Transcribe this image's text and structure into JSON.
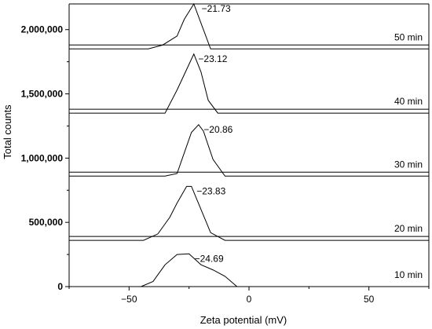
{
  "chart_data": {
    "type": "line",
    "xlabel": "Zeta potential (mV)",
    "ylabel": "Total counts",
    "xlim": [
      -75,
      75
    ],
    "ylim": [
      0,
      2200000
    ],
    "x_ticks": [
      -50,
      0,
      50
    ],
    "x_tick_labels": [
      "−50",
      "0",
      "50"
    ],
    "y_ticks": [
      0,
      500000,
      1000000,
      1500000,
      2000000
    ],
    "y_tick_labels": [
      "0",
      "500,000",
      "1,000,000",
      "1,500,000",
      "2,000,000"
    ],
    "grid": false,
    "series": [
      {
        "name": "10 min",
        "peak_label": "−24.69",
        "peak_x": -24.69,
        "baseline": 0,
        "x": [
          -75,
          -45,
          -40,
          -35,
          -30,
          -25,
          -20,
          -15,
          -10,
          -5,
          75
        ],
        "y": [
          0,
          0,
          40000,
          170000,
          250000,
          255000,
          170000,
          130000,
          80000,
          0,
          0
        ]
      },
      {
        "name": "20 min",
        "peak_label": "−23.83",
        "peak_x": -23.83,
        "baseline": 360000,
        "x": [
          -75,
          -44,
          -38,
          -33,
          -30,
          -26,
          -24,
          -20,
          -16,
          -10,
          75
        ],
        "y": [
          0,
          0,
          50000,
          180000,
          290000,
          420000,
          420000,
          240000,
          60000,
          0,
          0
        ]
      },
      {
        "name": "30 min",
        "peak_label": "−20.86",
        "peak_x": -20.86,
        "baseline": 860000,
        "x": [
          -75,
          -35,
          -30,
          -27,
          -24,
          -21,
          -19,
          -15,
          -10,
          75
        ],
        "y": [
          0,
          0,
          20000,
          180000,
          340000,
          400000,
          350000,
          130000,
          0,
          0
        ]
      },
      {
        "name": "40 min",
        "peak_label": "−23.12",
        "peak_x": -23.12,
        "baseline": 1350000,
        "x": [
          -75,
          -35,
          -30,
          -27,
          -23,
          -20,
          -17,
          -13,
          75
        ],
        "y": [
          0,
          0,
          180000,
          300000,
          460000,
          320000,
          100000,
          0,
          0
        ]
      },
      {
        "name": "50 min",
        "peak_label": "−21.73",
        "peak_x": -21.73,
        "baseline": 1850000,
        "x": [
          -75,
          -42,
          -36,
          -30,
          -27,
          -23,
          -20,
          -16,
          75
        ],
        "y": [
          0,
          0,
          30000,
          100000,
          230000,
          350000,
          200000,
          0,
          0
        ]
      }
    ]
  }
}
